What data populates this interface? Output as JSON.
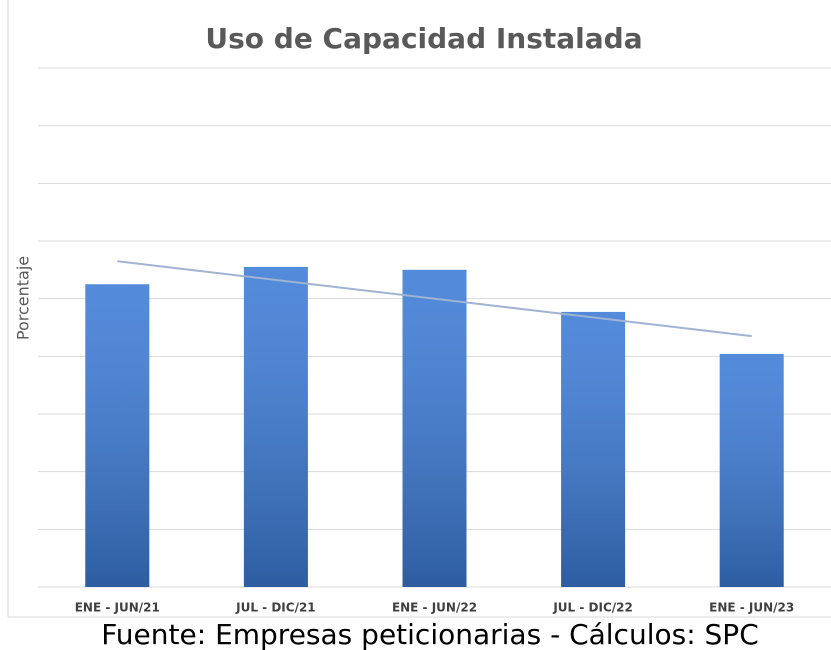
{
  "chart_data": {
    "type": "bar",
    "title": "Uso de Capacidad Instalada",
    "y_label": "Porcentaje",
    "categories": [
      "ENE - JUN/21",
      "JUL - DIC/21",
      "ENE - JUN/22",
      "JUL - DIC/22",
      "ENE - JUN/23"
    ],
    "values": [
      52.5,
      55.5,
      55,
      47.7,
      40.4
    ],
    "color": "#3c7bd6",
    "trendline": [
      56.5,
      43.5
    ],
    "trendline_color": "#9fb3d3",
    "ylim": [
      0,
      90
    ],
    "yticks": [
      0,
      10,
      20,
      30,
      40,
      50,
      60,
      70,
      80,
      90
    ],
    "grid": true,
    "source": "Fuente: Empresas peticionarias - Cálculos: SPC"
  }
}
